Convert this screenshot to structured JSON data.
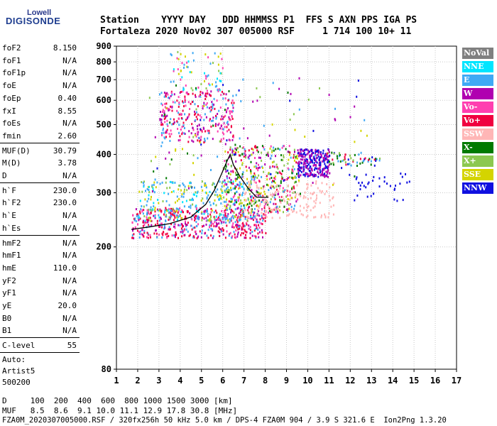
{
  "logo": {
    "line1": "Lowell",
    "line2": "DIGISONDE"
  },
  "header": {
    "row1": "Station    YYYY DAY   DDD HHMMSS P1  FFS S AXN PPS IGA PS",
    "row2": "Fortaleza 2020 Nov02 307 005000 RSF     1 714 100 10+ 11"
  },
  "left_panel": {
    "group1": [
      {
        "label": "foF2",
        "value": "8.150"
      },
      {
        "label": "foF1",
        "value": "N/A"
      },
      {
        "label": "foF1p",
        "value": "N/A"
      },
      {
        "label": "foE",
        "value": "N/A"
      },
      {
        "label": "foEp",
        "value": "0.40"
      },
      {
        "label": "fxI",
        "value": "8.55"
      },
      {
        "label": "foEs",
        "value": "N/A"
      },
      {
        "label": "fmin",
        "value": "2.60"
      }
    ],
    "group2": [
      {
        "label": "MUF(D)",
        "value": "30.79"
      },
      {
        "label": "M(D)",
        "value": "3.78"
      },
      {
        "label": "D",
        "value": "N/A"
      }
    ],
    "group3": [
      {
        "label": "h`F",
        "value": "230.0"
      },
      {
        "label": "h`F2",
        "value": "230.0"
      },
      {
        "label": "h`E",
        "value": "N/A"
      },
      {
        "label": "h`Es",
        "value": "N/A"
      }
    ],
    "group4": [
      {
        "label": "hmF2",
        "value": "N/A"
      },
      {
        "label": "hmF1",
        "value": "N/A"
      },
      {
        "label": "hmE",
        "value": "110.0"
      },
      {
        "label": "yF2",
        "value": "N/A"
      },
      {
        "label": "yF1",
        "value": "N/A"
      },
      {
        "label": "yE",
        "value": "20.0"
      },
      {
        "label": "B0",
        "value": "N/A"
      },
      {
        "label": "B1",
        "value": "N/A"
      }
    ],
    "clevel": {
      "label": "C-level",
      "value": "55"
    },
    "auto": {
      "line1": "Auto:",
      "line2": "Artist5",
      "line3": "500200"
    }
  },
  "legend": [
    {
      "label": "NoVal",
      "color": "#808080"
    },
    {
      "label": "NNE",
      "color": "#00e5ff"
    },
    {
      "label": "E",
      "color": "#3fa9f5"
    },
    {
      "label": "W",
      "color": "#b000b0"
    },
    {
      "label": "Vo-",
      "color": "#ff3fb0"
    },
    {
      "label": "Vo+",
      "color": "#f00040"
    },
    {
      "label": "SSW",
      "color": "#ffb6b6"
    },
    {
      "label": "X-",
      "color": "#007a00"
    },
    {
      "label": "X+",
      "color": "#8cc850"
    },
    {
      "label": "SSE",
      "color": "#d4d400"
    },
    {
      "label": "NNW",
      "color": "#1010e0"
    }
  ],
  "bottom": {
    "d_row": "D     100  200  400  600  800 1000 1500 3000 [km]",
    "muf_row": "MUF   8.5  8.6  9.1 10.0 11.1 12.9 17.8 30.8 [MHz]",
    "file_row": "FZA0M_2020307005000.RSF / 320fx256h 50 kHz 5.0 km / DPS-4 FZA0M 904 / 3.9 S 321.6 E  Ion2Png 1.3.20"
  },
  "chart_data": {
    "type": "scatter",
    "title": "",
    "xlabel": "",
    "ylabel": "",
    "xlim": [
      1,
      17
    ],
    "ylim": [
      80,
      900
    ],
    "x_ticks": [
      1,
      2,
      3,
      4,
      5,
      6,
      7,
      8,
      9,
      10,
      11,
      12,
      13,
      14,
      15,
      16,
      17
    ],
    "y_ticks": [
      80,
      200,
      300,
      400,
      500,
      600,
      700,
      800,
      900
    ],
    "y_scale": "log",
    "grid": true,
    "legend_position": "right",
    "clusters": [
      {
        "name": "F-trace low",
        "x_range": [
          1.7,
          8.0
        ],
        "y_range": [
          215,
          270
        ],
        "colors": [
          "#f00040",
          "#ff3fb0",
          "#b000b0",
          "#f00040",
          "#3fa9f5"
        ],
        "count": 520
      },
      {
        "name": "F-trace upper",
        "x_range": [
          2.0,
          7.5
        ],
        "y_range": [
          245,
          330
        ],
        "colors": [
          "#3fa9f5",
          "#00e5ff",
          "#3fa9f5",
          "#8cc850",
          "#d4d400"
        ],
        "count": 320
      },
      {
        "name": "Mid spread",
        "x_range": [
          6.0,
          9.5
        ],
        "y_range": [
          260,
          430
        ],
        "colors": [
          "#f00040",
          "#ff3fb0",
          "#b000b0",
          "#3fa9f5",
          "#8cc850",
          "#d4d400",
          "#007a00"
        ],
        "count": 420
      },
      {
        "name": "SSW region",
        "x_range": [
          7.0,
          11.2
        ],
        "y_range": [
          250,
          330
        ],
        "colors": [
          "#ffb6b6"
        ],
        "count": 150
      },
      {
        "name": "NNW cluster",
        "x_range": [
          9.5,
          11.0
        ],
        "y_range": [
          340,
          420
        ],
        "colors": [
          "#1010e0",
          "#b000b0"
        ],
        "count": 260
      },
      {
        "name": "2nd hop",
        "x_range": [
          3.0,
          6.5
        ],
        "y_range": [
          440,
          650
        ],
        "colors": [
          "#ff3fb0",
          "#b000b0",
          "#3fa9f5",
          "#f00040"
        ],
        "count": 320
      },
      {
        "name": "3rd hop",
        "x_range": [
          3.5,
          6.0
        ],
        "y_range": [
          650,
          870
        ],
        "colors": [
          "#3fa9f5",
          "#00e5ff",
          "#8cc850",
          "#d4d400",
          "#ff3fb0"
        ],
        "count": 70
      },
      {
        "name": "Right tail",
        "x_range": [
          10.8,
          13.4
        ],
        "y_range": [
          370,
          410
        ],
        "colors": [
          "#007a00",
          "#8cc850",
          "#f00040",
          "#1010e0",
          "#3fa9f5"
        ],
        "count": 60
      },
      {
        "name": "Far right",
        "x_range": [
          12.0,
          14.8
        ],
        "y_range": [
          280,
          350
        ],
        "colors": [
          "#1010e0"
        ],
        "count": 35
      },
      {
        "name": "Sparse scatter",
        "x_range": [
          2.5,
          12.8
        ],
        "y_range": [
          300,
          720
        ],
        "colors": [
          "#3fa9f5",
          "#d4d400",
          "#8cc850",
          "#007a00",
          "#b000b0",
          "#1010e0"
        ],
        "count": 130
      }
    ],
    "trace_curve": {
      "color": "#000000",
      "points": [
        [
          1.7,
          228
        ],
        [
          2.5,
          232
        ],
        [
          3.5,
          238
        ],
        [
          4.5,
          250
        ],
        [
          5.2,
          275
        ],
        [
          5.6,
          305
        ],
        [
          5.9,
          340
        ],
        [
          6.2,
          380
        ],
        [
          6.35,
          400
        ],
        [
          6.5,
          370
        ],
        [
          6.8,
          340
        ],
        [
          7.2,
          310
        ],
        [
          7.6,
          290
        ],
        [
          8.15,
          290
        ]
      ]
    }
  }
}
